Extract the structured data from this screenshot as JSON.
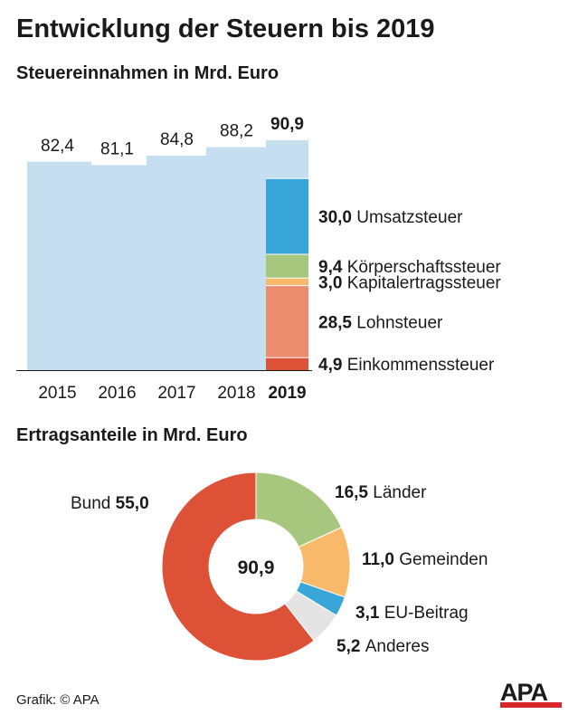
{
  "title": "Entwicklung der Steuern bis 2019",
  "subtitle_bar": "Steuereinnahmen in Mrd. Euro",
  "subtitle_donut": "Ertragsanteile in Mrd. Euro",
  "footer": "Grafik: © APA",
  "logo": "APA",
  "chart_data": [
    {
      "type": "bar",
      "categories": [
        "2015",
        "2016",
        "2017",
        "2018",
        "2019"
      ],
      "values": [
        82.4,
        81.1,
        84.8,
        88.2,
        90.9
      ],
      "value_labels": [
        "82,4",
        "81,1",
        "84,8",
        "88,2",
        "90,9"
      ],
      "highlight_category": "2019",
      "bar_color": "#c5dff1",
      "ylim": [
        0,
        90.9
      ],
      "stacked_2019": [
        {
          "name": "Einkommenssteuer",
          "value": 4.9,
          "label": "4,9",
          "color": "#dd5137"
        },
        {
          "name": "Lohnsteuer",
          "value": 28.5,
          "label": "28,5",
          "color": "#ec8c6f"
        },
        {
          "name": "Kapitalertragssteuer",
          "value": 3.0,
          "label": "3,0",
          "color": "#f8b96a"
        },
        {
          "name": "Körperschaftssteuer",
          "value": 9.4,
          "label": "9,4",
          "color": "#a8c77e"
        },
        {
          "name": "Umsatzsteuer",
          "value": 30.0,
          "label": "30,0",
          "color": "#38a6d8"
        },
        {
          "name": "",
          "value": 15.1,
          "label": "",
          "color": "#c5dff1"
        }
      ]
    },
    {
      "type": "pie",
      "total_label": "90,9",
      "slices": [
        {
          "name": "Länder",
          "value": 16.5,
          "label": "16,5",
          "color": "#a8c77e",
          "label_side": "right"
        },
        {
          "name": "Gemeinden",
          "value": 11.0,
          "label": "11,0",
          "color": "#f8b96a",
          "label_side": "right"
        },
        {
          "name": "EU-Beitrag",
          "value": 3.1,
          "label": "3,1",
          "color": "#38a6d8",
          "label_side": "right"
        },
        {
          "name": "Anderes",
          "value": 5.2,
          "label": "5,2",
          "color": "#e4e4e4",
          "label_side": "right"
        },
        {
          "name": "Bund",
          "value": 55.0,
          "label": "55,0",
          "color": "#dd5137",
          "label_side": "left"
        }
      ]
    }
  ]
}
